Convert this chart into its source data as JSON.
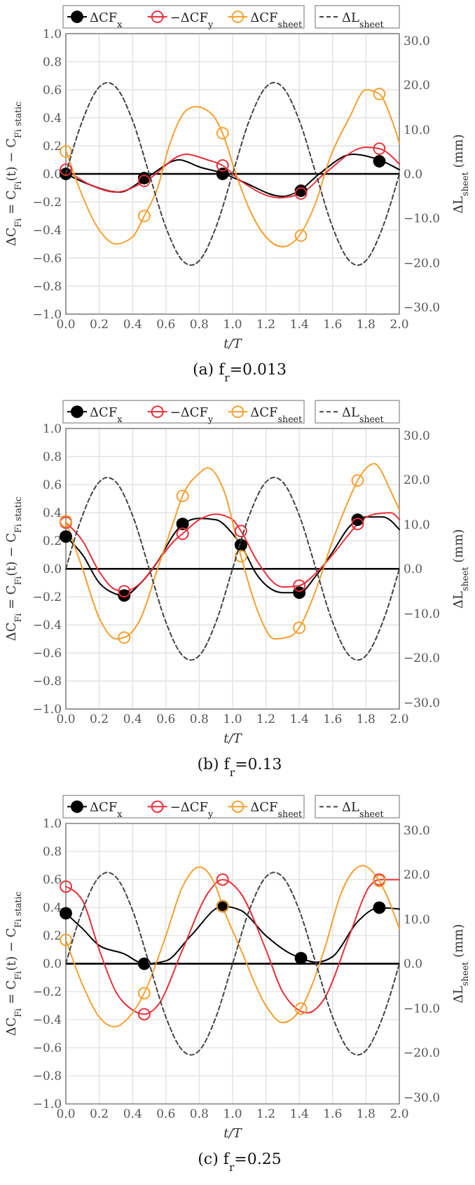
{
  "chart_data": [
    {
      "type": "line",
      "title": "(a) f$_{r}$=0.013",
      "xlabel": "t/T",
      "ylabel": "ΔC$_{Fi}$ = C$_{Fi}$(t) − C$_{Fi static}$",
      "y2label": "ΔL$_{sheet}$ (mm)",
      "xlim": [
        0,
        2
      ],
      "ylim": [
        -1,
        1
      ],
      "y2lim": [
        -31.5,
        31.5
      ],
      "xticks": [
        {
          "value": 0,
          "label": "0.0"
        },
        {
          "value": 0.2,
          "label": "0.2"
        },
        {
          "value": 0.4,
          "label": "0.4"
        },
        {
          "value": 0.6,
          "label": "0.6"
        },
        {
          "value": 0.8,
          "label": "0.8"
        },
        {
          "value": 1,
          "label": "1.0"
        },
        {
          "value": 1.2,
          "label": "1.2"
        },
        {
          "value": 1.4,
          "label": "1.4"
        },
        {
          "value": 1.6,
          "label": "1.6"
        },
        {
          "value": 1.8,
          "label": "1.8"
        },
        {
          "value": 2,
          "label": "2.0"
        }
      ],
      "yticks": [
        {
          "value": -1,
          "label": "−1.0"
        },
        {
          "value": -0.8,
          "label": "−0.8"
        },
        {
          "value": -0.6,
          "label": "−0.6"
        },
        {
          "value": -0.4,
          "label": "−0.4"
        },
        {
          "value": -0.2,
          "label": "−0.2"
        },
        {
          "value": 0,
          "label": "0.0"
        },
        {
          "value": 0.2,
          "label": "0.2"
        },
        {
          "value": 0.4,
          "label": "0.4"
        },
        {
          "value": 0.6,
          "label": "0.6"
        },
        {
          "value": 0.8,
          "label": "0.8"
        },
        {
          "value": 1,
          "label": "1.0"
        }
      ],
      "y2ticks": [
        {
          "value": -30,
          "label": "−30.0"
        },
        {
          "value": -20,
          "label": "−20.0"
        },
        {
          "value": -10,
          "label": "−10.0"
        },
        {
          "value": 0,
          "label": "0.0"
        },
        {
          "value": 10,
          "label": "10.0"
        },
        {
          "value": 20,
          "label": "20.0"
        },
        {
          "value": 30,
          "label": "30.0"
        }
      ],
      "grid": true,
      "legend": "top",
      "ref_lines": [
        {
          "axis": "y",
          "value": 0,
          "color": "#000000"
        }
      ],
      "series": [
        {
          "type": "line",
          "color": "#000000",
          "marker": "none",
          "x": [
            0,
            0.15,
            0.32,
            0.48,
            0.68,
            0.8,
            0.95,
            1.05,
            1.3,
            1.4,
            1.52,
            1.72,
            1.88,
            2.0
          ],
          "values": [
            0,
            -0.08,
            -0.13,
            -0.03,
            0.1,
            0.05,
            0,
            -0.05,
            -0.16,
            -0.12,
            0,
            0.14,
            0.1,
            0.03
          ]
        },
        {
          "type": "line",
          "color": "#e8303a",
          "marker": "none",
          "x": [
            0,
            0.15,
            0.3,
            0.48,
            0.72,
            0.85,
            0.94,
            1.05,
            1.28,
            1.41,
            1.55,
            1.8,
            1.88,
            2.0
          ],
          "values": [
            0.03,
            -0.08,
            -0.13,
            -0.05,
            0.14,
            0.1,
            0.06,
            -0.05,
            -0.17,
            -0.14,
            0,
            0.19,
            0.18,
            0.07
          ]
        },
        {
          "type": "line",
          "color": "#f5a030",
          "marker": "none",
          "x": [
            0,
            0.08,
            0.2,
            0.3,
            0.4,
            0.47,
            0.55,
            0.62,
            0.72,
            0.78,
            0.88,
            0.94,
            1.02,
            1.1,
            1.2,
            1.3,
            1.4,
            1.5,
            1.58,
            1.7,
            1.8,
            1.88,
            1.95,
            2.0
          ],
          "values": [
            0.17,
            -0.1,
            -0.4,
            -0.5,
            -0.45,
            -0.3,
            -0.1,
            0.2,
            0.45,
            0.48,
            0.42,
            0.29,
            0,
            -0.25,
            -0.45,
            -0.52,
            -0.44,
            -0.2,
            0.1,
            0.4,
            0.6,
            0.57,
            0.4,
            0.22
          ]
        },
        {
          "type": "scatter",
          "name": "ΔCF$_{x}$",
          "color": "#000000",
          "marker": "circle",
          "x": [
            0,
            0.47,
            0.94,
            1.41,
            1.88
          ],
          "values": [
            0,
            -0.03,
            0,
            -0.12,
            0.09
          ]
        },
        {
          "type": "scatter",
          "name": "−ΔCF$_{y}$",
          "color": "#e8303a",
          "marker": "circle",
          "x": [
            0,
            0.47,
            0.94,
            1.41,
            1.88
          ],
          "values": [
            0.03,
            -0.05,
            0.06,
            -0.14,
            0.18
          ]
        },
        {
          "type": "scatter",
          "name": "ΔCF$_{sheet}$",
          "color": "#f5a030",
          "marker": "circle",
          "x": [
            0,
            0.47,
            0.94,
            1.41,
            1.88
          ],
          "values": [
            0.16,
            -0.3,
            0.29,
            -0.44,
            0.57
          ]
        },
        {
          "type": "line",
          "name": "ΔL$_{sheet}$",
          "axis": "y2",
          "color": "#444444",
          "line_style": "dashed",
          "marker": "none",
          "x": [
            0,
            0.1,
            0.2,
            0.25,
            0.3,
            0.4,
            0.5,
            0.6,
            0.7,
            0.75,
            0.8,
            0.9,
            1.0,
            1.1,
            1.2,
            1.25,
            1.3,
            1.4,
            1.5,
            1.6,
            1.7,
            1.75,
            1.8,
            1.9,
            2.0
          ],
          "values": [
            0,
            12,
            19.5,
            20.5,
            19.5,
            12,
            0,
            -12,
            -19.5,
            -20.5,
            -19.5,
            -12,
            0,
            12,
            19.5,
            20.5,
            19.5,
            12,
            0,
            -12,
            -19.5,
            -20.5,
            -19.5,
            -12,
            0
          ]
        }
      ]
    },
    {
      "type": "line",
      "title": "(b) f$_{r}$=0.13",
      "xlabel": "t/T",
      "ylabel": "ΔC$_{Fi}$ = C$_{Fi}$(t) − C$_{Fi static}$",
      "y2label": "ΔL$_{sheet}$ (mm)",
      "xlim": [
        0,
        2
      ],
      "ylim": [
        -1,
        1
      ],
      "y2lim": [
        -31.5,
        31.5
      ],
      "xticks": [
        {
          "value": 0,
          "label": "0.0"
        },
        {
          "value": 0.2,
          "label": "0.2"
        },
        {
          "value": 0.4,
          "label": "0.4"
        },
        {
          "value": 0.6,
          "label": "0.6"
        },
        {
          "value": 0.8,
          "label": "0.8"
        },
        {
          "value": 1,
          "label": "1.0"
        },
        {
          "value": 1.2,
          "label": "1.2"
        },
        {
          "value": 1.4,
          "label": "1.4"
        },
        {
          "value": 1.6,
          "label": "1.6"
        },
        {
          "value": 1.8,
          "label": "1.8"
        },
        {
          "value": 2,
          "label": "2.0"
        }
      ],
      "yticks": [
        {
          "value": -1,
          "label": "−1.0"
        },
        {
          "value": -0.8,
          "label": "−0.8"
        },
        {
          "value": -0.6,
          "label": "−0.6"
        },
        {
          "value": -0.4,
          "label": "−0.4"
        },
        {
          "value": -0.2,
          "label": "−0.2"
        },
        {
          "value": 0,
          "label": "0.0"
        },
        {
          "value": 0.2,
          "label": "0.2"
        },
        {
          "value": 0.4,
          "label": "0.4"
        },
        {
          "value": 0.6,
          "label": "0.6"
        },
        {
          "value": 0.8,
          "label": "0.8"
        },
        {
          "value": 1,
          "label": "1.0"
        }
      ],
      "y2ticks": [
        {
          "value": -30,
          "label": "−30.0"
        },
        {
          "value": -20,
          "label": "−20.0"
        },
        {
          "value": -10,
          "label": "−10.0"
        },
        {
          "value": 0,
          "label": "0.0"
        },
        {
          "value": 10,
          "label": "10.0"
        },
        {
          "value": 20,
          "label": "20.0"
        },
        {
          "value": 30,
          "label": "30.0"
        }
      ],
      "grid": true,
      "legend": "top",
      "ref_lines": [
        {
          "axis": "y",
          "value": 0,
          "color": "#000000"
        }
      ],
      "series": [
        {
          "type": "line",
          "color": "#000000",
          "marker": "none",
          "x": [
            0,
            0.1,
            0.2,
            0.3,
            0.35,
            0.45,
            0.55,
            0.65,
            0.7,
            0.8,
            0.9,
            1.0,
            1.05,
            1.15,
            1.3,
            1.4,
            1.5,
            1.6,
            1.7,
            1.75,
            1.8,
            1.9,
            2.0
          ],
          "values": [
            0.23,
            0.1,
            -0.1,
            -0.18,
            -0.19,
            -0.1,
            0.05,
            0.25,
            0.32,
            0.36,
            0.35,
            0.25,
            0.17,
            -0.05,
            -0.17,
            -0.17,
            -0.05,
            0.12,
            0.3,
            0.35,
            0.37,
            0.37,
            0.28
          ]
        },
        {
          "type": "line",
          "color": "#e8303a",
          "marker": "none",
          "x": [
            0,
            0.1,
            0.2,
            0.3,
            0.35,
            0.45,
            0.55,
            0.65,
            0.7,
            0.8,
            0.9,
            1.0,
            1.05,
            1.15,
            1.3,
            1.4,
            1.5,
            1.6,
            1.7,
            1.75,
            1.85,
            1.95,
            2.0
          ],
          "values": [
            0.33,
            0.2,
            -0.02,
            -0.15,
            -0.16,
            -0.1,
            0.05,
            0.2,
            0.25,
            0.35,
            0.39,
            0.35,
            0.27,
            0.05,
            -0.13,
            -0.12,
            -0.03,
            0.1,
            0.25,
            0.32,
            0.39,
            0.4,
            0.35
          ]
        },
        {
          "type": "line",
          "color": "#f5a030",
          "marker": "none",
          "x": [
            0,
            0.1,
            0.2,
            0.3,
            0.35,
            0.45,
            0.55,
            0.65,
            0.7,
            0.8,
            0.85,
            0.95,
            1.05,
            1.15,
            1.25,
            1.35,
            1.4,
            1.5,
            1.6,
            1.7,
            1.75,
            1.85,
            1.95,
            2.0
          ],
          "values": [
            0.34,
            0,
            -0.35,
            -0.5,
            -0.49,
            -0.35,
            0,
            0.35,
            0.52,
            0.68,
            0.72,
            0.55,
            0.09,
            -0.3,
            -0.5,
            -0.48,
            -0.42,
            -0.15,
            0.2,
            0.5,
            0.63,
            0.75,
            0.55,
            0.42
          ]
        },
        {
          "type": "scatter",
          "name": "ΔCF$_{x}$",
          "color": "#000000",
          "marker": "circle",
          "x": [
            0,
            0.35,
            0.7,
            1.05,
            1.4,
            1.75
          ],
          "values": [
            0.23,
            -0.19,
            0.32,
            0.17,
            -0.17,
            0.35
          ]
        },
        {
          "type": "scatter",
          "name": "−ΔCF$_{y}$",
          "color": "#e8303a",
          "marker": "circle",
          "x": [
            0,
            0.35,
            0.7,
            1.05,
            1.4,
            1.75
          ],
          "values": [
            0.33,
            -0.16,
            0.25,
            0.27,
            -0.12,
            0.32
          ]
        },
        {
          "type": "scatter",
          "name": "ΔCF$_{sheet}$",
          "color": "#f5a030",
          "marker": "circle",
          "x": [
            0,
            0.35,
            0.7,
            1.05,
            1.4,
            1.75
          ],
          "values": [
            0.34,
            -0.49,
            0.52,
            0.09,
            -0.42,
            0.63
          ]
        },
        {
          "type": "line",
          "name": "ΔL$_{sheet}$",
          "axis": "y2",
          "color": "#444444",
          "line_style": "dashed",
          "marker": "none",
          "x": [
            0,
            0.1,
            0.2,
            0.25,
            0.3,
            0.4,
            0.5,
            0.6,
            0.7,
            0.75,
            0.8,
            0.9,
            1.0,
            1.1,
            1.2,
            1.25,
            1.3,
            1.4,
            1.5,
            1.6,
            1.7,
            1.75,
            1.8,
            1.9,
            2.0
          ],
          "values": [
            0,
            12,
            19.5,
            20.5,
            19.5,
            12,
            0,
            -12,
            -19.5,
            -20.5,
            -19.5,
            -12,
            0,
            12,
            19.5,
            20.5,
            19.5,
            12,
            0,
            -12,
            -19.5,
            -20.5,
            -19.5,
            -12,
            0
          ]
        }
      ]
    },
    {
      "type": "line",
      "title": "(c) f$_{r}$=0.25",
      "xlabel": "t/T",
      "ylabel": "ΔC$_{Fi}$ = C$_{Fi}$(t) − C$_{Fi static}$",
      "y2label": "ΔL$_{sheet}$ (mm)",
      "xlim": [
        0,
        2
      ],
      "ylim": [
        -1,
        1
      ],
      "y2lim": [
        -31.5,
        31.5
      ],
      "xticks": [
        {
          "value": 0,
          "label": "0.0"
        },
        {
          "value": 0.2,
          "label": "0.2"
        },
        {
          "value": 0.4,
          "label": "0.4"
        },
        {
          "value": 0.6,
          "label": "0.6"
        },
        {
          "value": 0.8,
          "label": "0.8"
        },
        {
          "value": 1,
          "label": "1.0"
        },
        {
          "value": 1.2,
          "label": "1.2"
        },
        {
          "value": 1.4,
          "label": "1.4"
        },
        {
          "value": 1.6,
          "label": "1.6"
        },
        {
          "value": 1.8,
          "label": "1.8"
        },
        {
          "value": 2,
          "label": "2.0"
        }
      ],
      "yticks": [
        {
          "value": -1,
          "label": "−1.0"
        },
        {
          "value": -0.8,
          "label": "−0.8"
        },
        {
          "value": -0.6,
          "label": "−0.6"
        },
        {
          "value": -0.4,
          "label": "−0.4"
        },
        {
          "value": -0.2,
          "label": "−0.2"
        },
        {
          "value": 0,
          "label": "0.0"
        },
        {
          "value": 0.2,
          "label": "0.2"
        },
        {
          "value": 0.4,
          "label": "0.4"
        },
        {
          "value": 0.6,
          "label": "0.6"
        },
        {
          "value": 0.8,
          "label": "0.8"
        },
        {
          "value": 1,
          "label": "1.0"
        }
      ],
      "y2ticks": [
        {
          "value": -30,
          "label": "−30.0"
        },
        {
          "value": -20,
          "label": "−20.0"
        },
        {
          "value": -10,
          "label": "−10.0"
        },
        {
          "value": 0,
          "label": "0.0"
        },
        {
          "value": 10,
          "label": "10.0"
        },
        {
          "value": 20,
          "label": "20.0"
        },
        {
          "value": 30,
          "label": "30.0"
        }
      ],
      "grid": true,
      "legend": "top",
      "ref_lines": [
        {
          "axis": "y",
          "value": 0,
          "color": "#000000"
        }
      ],
      "series": [
        {
          "type": "line",
          "color": "#000000",
          "marker": "none",
          "x": [
            0,
            0.1,
            0.2,
            0.35,
            0.47,
            0.6,
            0.75,
            0.94,
            1.05,
            1.2,
            1.35,
            1.41,
            1.5,
            1.6,
            1.75,
            1.88,
            2.0
          ],
          "values": [
            0.36,
            0.25,
            0.13,
            0.07,
            0,
            0.02,
            0.2,
            0.41,
            0.38,
            0.2,
            0.07,
            0.04,
            0.01,
            0.05,
            0.3,
            0.4,
            0.39
          ]
        },
        {
          "type": "line",
          "color": "#e8303a",
          "marker": "none",
          "x": [
            0,
            0.1,
            0.2,
            0.3,
            0.4,
            0.47,
            0.55,
            0.7,
            0.85,
            0.94,
            1.05,
            1.2,
            1.3,
            1.45,
            1.55,
            1.7,
            1.82,
            1.88,
            2.0
          ],
          "values": [
            0.55,
            0.45,
            0.1,
            -0.2,
            -0.33,
            -0.36,
            -0.3,
            0.1,
            0.5,
            0.6,
            0.5,
            0.1,
            -0.2,
            -0.35,
            -0.25,
            0.2,
            0.55,
            0.6,
            0.6
          ]
        },
        {
          "type": "line",
          "color": "#f5a030",
          "marker": "none",
          "x": [
            0,
            0.1,
            0.2,
            0.29,
            0.4,
            0.47,
            0.6,
            0.7,
            0.8,
            0.9,
            0.94,
            1.05,
            1.2,
            1.3,
            1.41,
            1.55,
            1.65,
            1.78,
            1.88,
            2.0
          ],
          "values": [
            0.17,
            -0.15,
            -0.38,
            -0.45,
            -0.35,
            -0.21,
            0.2,
            0.55,
            0.69,
            0.55,
            0.41,
            0.1,
            -0.3,
            -0.42,
            -0.32,
            0.1,
            0.5,
            0.7,
            0.59,
            0.25
          ]
        },
        {
          "type": "scatter",
          "name": "ΔCF$_{x}$",
          "color": "#000000",
          "marker": "circle",
          "x": [
            0,
            0.47,
            0.94,
            1.41,
            1.88
          ],
          "values": [
            0.36,
            0,
            0.41,
            0.04,
            0.4
          ]
        },
        {
          "type": "scatter",
          "name": "−ΔCF$_{y}$",
          "color": "#e8303a",
          "marker": "circle",
          "x": [
            0,
            0.47,
            0.94,
            1.41,
            1.88
          ],
          "values": [
            0.55,
            -0.36,
            0.6,
            null,
            0.6
          ]
        },
        {
          "type": "scatter",
          "name": "ΔCF$_{sheet}$",
          "color": "#f5a030",
          "marker": "circle",
          "x": [
            0,
            0.47,
            0.94,
            1.41,
            1.88
          ],
          "values": [
            0.17,
            -0.21,
            0.41,
            -0.32,
            0.59
          ]
        },
        {
          "type": "line",
          "name": "ΔL$_{sheet}$",
          "axis": "y2",
          "color": "#444444",
          "line_style": "dashed",
          "marker": "none",
          "x": [
            0,
            0.1,
            0.2,
            0.25,
            0.3,
            0.4,
            0.5,
            0.6,
            0.7,
            0.75,
            0.8,
            0.9,
            1.0,
            1.1,
            1.2,
            1.25,
            1.3,
            1.4,
            1.5,
            1.6,
            1.7,
            1.75,
            1.8,
            1.9,
            2.0
          ],
          "values": [
            0,
            12,
            19.5,
            20.5,
            19.5,
            12,
            0,
            -12,
            -19.5,
            -20.5,
            -19.5,
            -12,
            0,
            12,
            19.5,
            20.5,
            19.5,
            12,
            0,
            -12,
            -19.5,
            -20.5,
            -19.5,
            -12,
            0
          ]
        }
      ]
    }
  ]
}
